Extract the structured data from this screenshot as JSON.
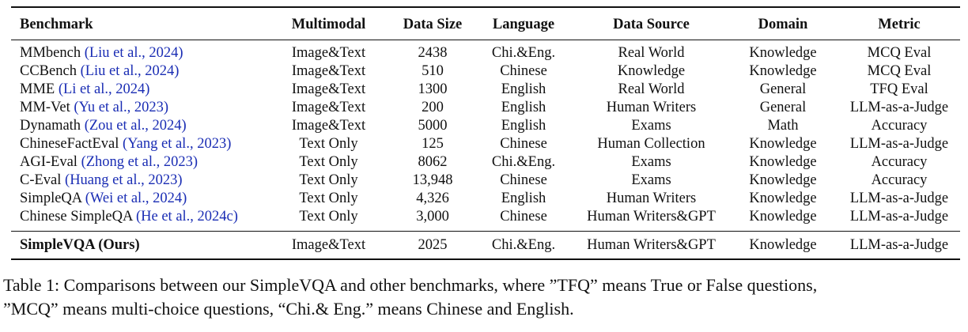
{
  "table": {
    "headers": [
      "Benchmark",
      "Multimodal",
      "Data Size",
      "Language",
      "Data Source",
      "Domain",
      "Metric"
    ],
    "rows": [
      {
        "name": "MMbench",
        "cite": "(Liu et al., 2024)",
        "multimodal": "Image&Text",
        "size": "2438",
        "language": "Chi.&Eng.",
        "source": "Real World",
        "domain": "Knowledge",
        "metric": "MCQ Eval"
      },
      {
        "name": "CCBench",
        "cite": "(Liu et al., 2024)",
        "multimodal": "Image&Text",
        "size": "510",
        "language": "Chinese",
        "source": "Knowledge",
        "domain": "Knowledge",
        "metric": "MCQ Eval"
      },
      {
        "name": "MME",
        "cite": "(Li et al., 2024)",
        "multimodal": "Image&Text",
        "size": "1300",
        "language": "English",
        "source": "Real World",
        "domain": "General",
        "metric": "TFQ Eval"
      },
      {
        "name": "MM-Vet",
        "cite": "(Yu et al., 2023)",
        "multimodal": "Image&Text",
        "size": "200",
        "language": "English",
        "source": "Human Writers",
        "domain": "General",
        "metric": "LLM-as-a-Judge"
      },
      {
        "name": "Dynamath",
        "cite": "(Zou et al., 2024)",
        "multimodal": "Image&Text",
        "size": "5000",
        "language": "English",
        "source": "Exams",
        "domain": "Math",
        "metric": "Accuracy"
      },
      {
        "name": "ChineseFactEval",
        "cite": "(Yang et al., 2023)",
        "multimodal": "Text Only",
        "size": "125",
        "language": "Chinese",
        "source": "Human Collection",
        "domain": "Knowledge",
        "metric": "LLM-as-a-Judge"
      },
      {
        "name": "AGI-Eval",
        "cite": "(Zhong et al., 2023)",
        "multimodal": "Text Only",
        "size": "8062",
        "language": "Chi.&Eng.",
        "source": "Exams",
        "domain": "Knowledge",
        "metric": "Accuracy"
      },
      {
        "name": "C-Eval",
        "cite": "(Huang et al., 2023)",
        "multimodal": "Text Only",
        "size": "13,948",
        "language": "Chinese",
        "source": "Exams",
        "domain": "Knowledge",
        "metric": "Accuracy"
      },
      {
        "name": "SimpleQA",
        "cite": "(Wei et al., 2024)",
        "multimodal": "Text Only",
        "size": "4,326",
        "language": "English",
        "source": "Human Writers",
        "domain": "Knowledge",
        "metric": "LLM-as-a-Judge"
      },
      {
        "name": "Chinese SimpleQA",
        "cite": "(He et al., 2024c)",
        "multimodal": "Text Only",
        "size": "3,000",
        "language": "Chinese",
        "source": "Human Writers&GPT",
        "domain": "Knowledge",
        "metric": "LLM-as-a-Judge"
      }
    ],
    "ours": {
      "name": "SimpleVQA (Ours)",
      "multimodal": "Image&Text",
      "size": "2025",
      "language": "Chi.&Eng.",
      "source": "Human Writers&GPT",
      "domain": "Knowledge",
      "metric": "LLM-as-a-Judge"
    }
  },
  "caption": {
    "line1": "Table 1: Comparisons between our SimpleVQA and other benchmarks, where ”TFQ” means True or False questions,",
    "line2": "”MCQ” means multi-choice questions, “Chi.& Eng.” means Chinese and English."
  },
  "colors": {
    "citation": "#1a2db4",
    "text": "#111111"
  }
}
